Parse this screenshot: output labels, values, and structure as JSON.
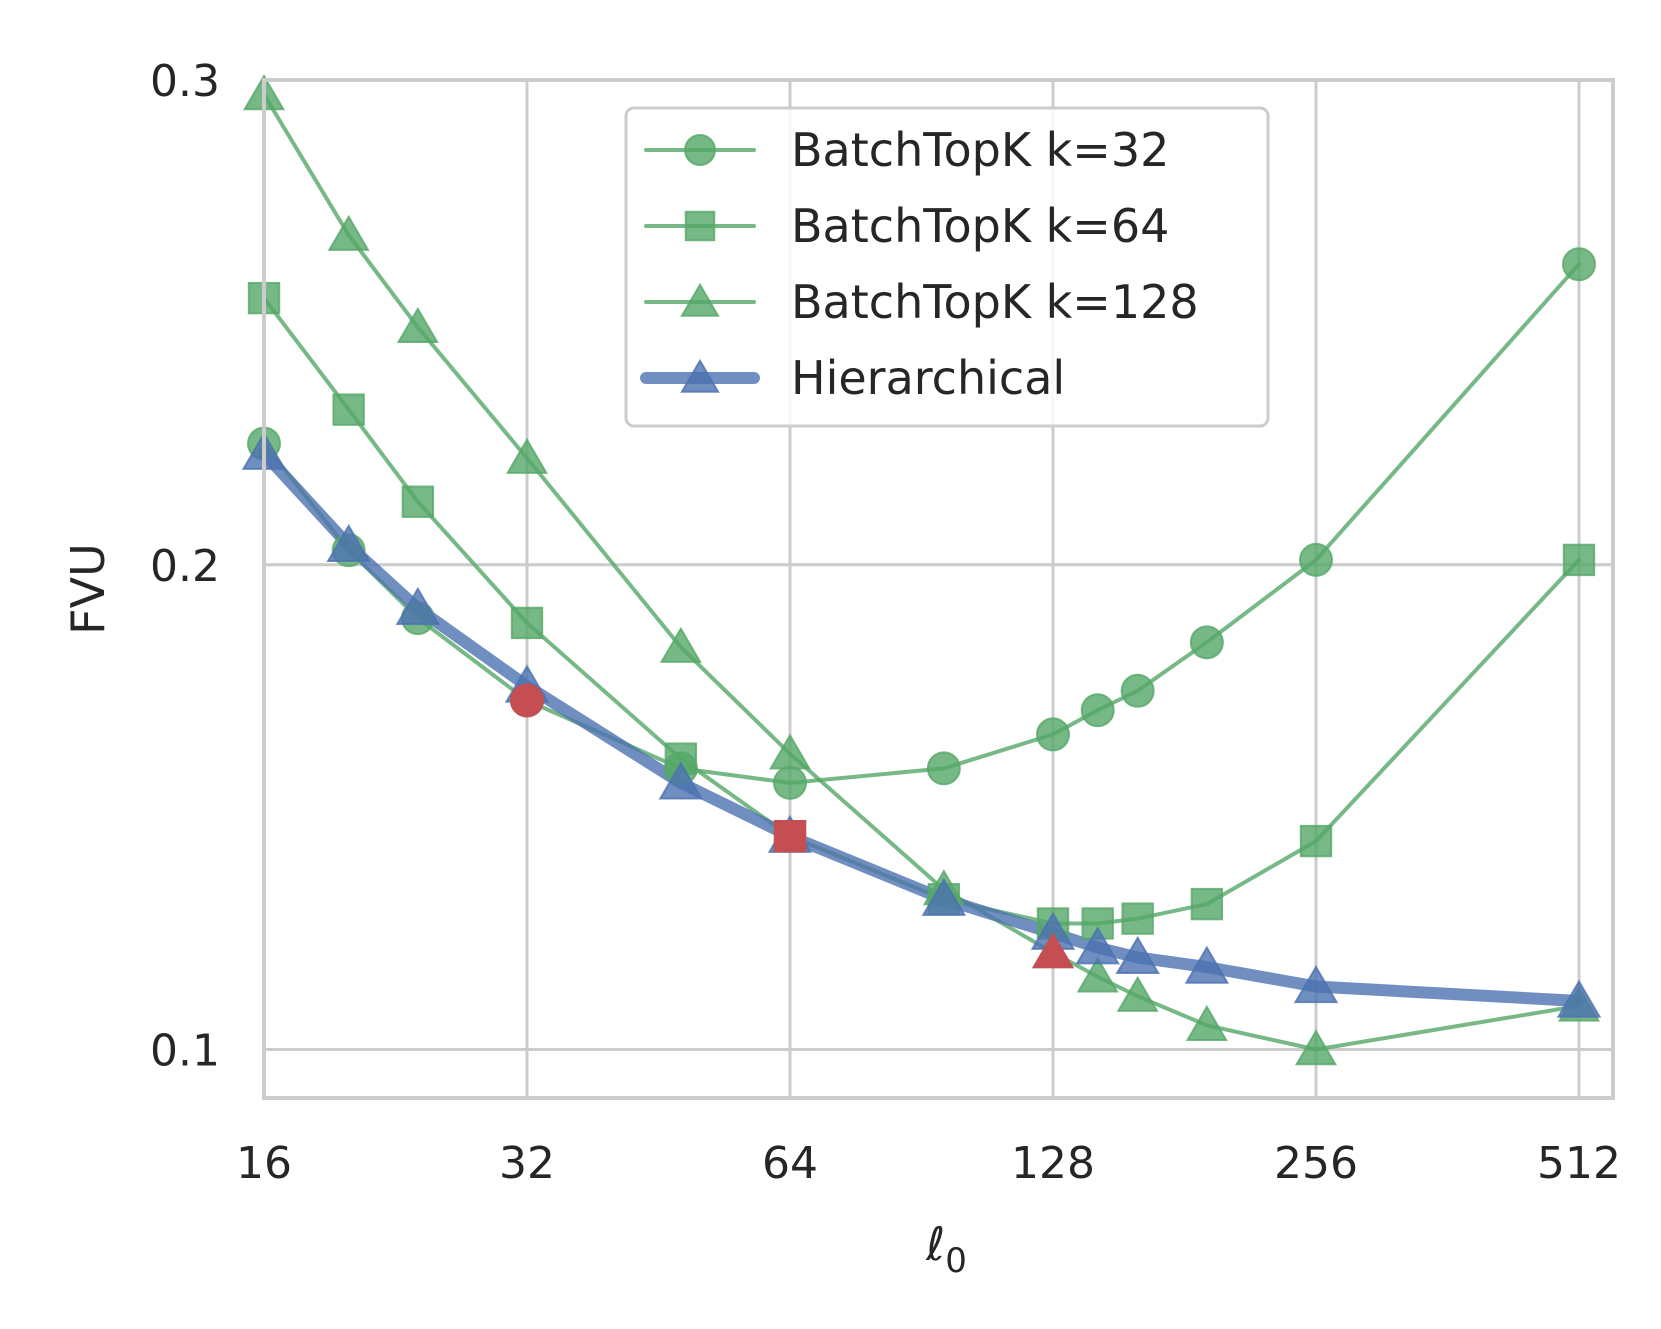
{
  "chart_data": {
    "type": "line",
    "title": "",
    "xlabel_base": "ℓ",
    "xlabel_sub": "0",
    "ylabel": "FVU",
    "x_scale": "log2",
    "xlim": [
      16,
      560
    ],
    "ylim": [
      0.09,
      0.3
    ],
    "xticks": [
      16,
      32,
      64,
      128,
      256,
      512
    ],
    "xtick_labels": [
      "16",
      "32",
      "64",
      "128",
      "256",
      "512"
    ],
    "yticks": [
      0.1,
      0.2,
      0.3
    ],
    "ytick_labels": [
      "0.1",
      "0.2",
      "0.3"
    ],
    "grid": true,
    "legend_position": "top-center",
    "series": [
      {
        "name": "BatchTopK k=32",
        "color": "#55a868",
        "marker": "circle",
        "linewidth": 4,
        "x": [
          16,
          20,
          24,
          32,
          48,
          64,
          96,
          128,
          144,
          160,
          192,
          256,
          512
        ],
        "y": [
          0.225,
          0.203,
          0.189,
          0.172,
          0.158,
          0.155,
          0.158,
          0.165,
          0.17,
          0.174,
          0.184,
          0.201,
          0.262
        ]
      },
      {
        "name": "BatchTopK k=64",
        "color": "#55a868",
        "marker": "square",
        "linewidth": 4,
        "x": [
          16,
          20,
          24,
          32,
          48,
          64,
          96,
          128,
          144,
          160,
          192,
          256,
          512
        ],
        "y": [
          0.255,
          0.232,
          0.213,
          0.188,
          0.16,
          0.144,
          0.131,
          0.126,
          0.126,
          0.127,
          0.13,
          0.143,
          0.201
        ]
      },
      {
        "name": "BatchTopK k=128",
        "color": "#55a868",
        "marker": "triangle",
        "linewidth": 4,
        "x": [
          16,
          20,
          24,
          32,
          48,
          64,
          96,
          128,
          144,
          160,
          192,
          256,
          512
        ],
        "y": [
          0.297,
          0.268,
          0.249,
          0.222,
          0.183,
          0.161,
          0.133,
          0.12,
          0.115,
          0.111,
          0.105,
          0.1,
          0.109
        ]
      },
      {
        "name": "Hierarchical",
        "color": "#4c72b0",
        "marker": "triangle",
        "linewidth": 12,
        "x": [
          16,
          20,
          24,
          32,
          48,
          64,
          96,
          128,
          144,
          160,
          192,
          256,
          512
        ],
        "y": [
          0.223,
          0.204,
          0.191,
          0.175,
          0.155,
          0.144,
          0.131,
          0.124,
          0.121,
          0.119,
          0.117,
          0.113,
          0.11
        ]
      }
    ],
    "highlights": [
      {
        "series": "BatchTopK k=32",
        "color": "#c44e52",
        "marker": "circle",
        "x": 32,
        "y": 0.172
      },
      {
        "series": "BatchTopK k=64",
        "color": "#c44e52",
        "marker": "square",
        "x": 64,
        "y": 0.144
      },
      {
        "series": "BatchTopK k=128",
        "color": "#c44e52",
        "marker": "triangle",
        "x": 128,
        "y": 0.12
      }
    ]
  }
}
